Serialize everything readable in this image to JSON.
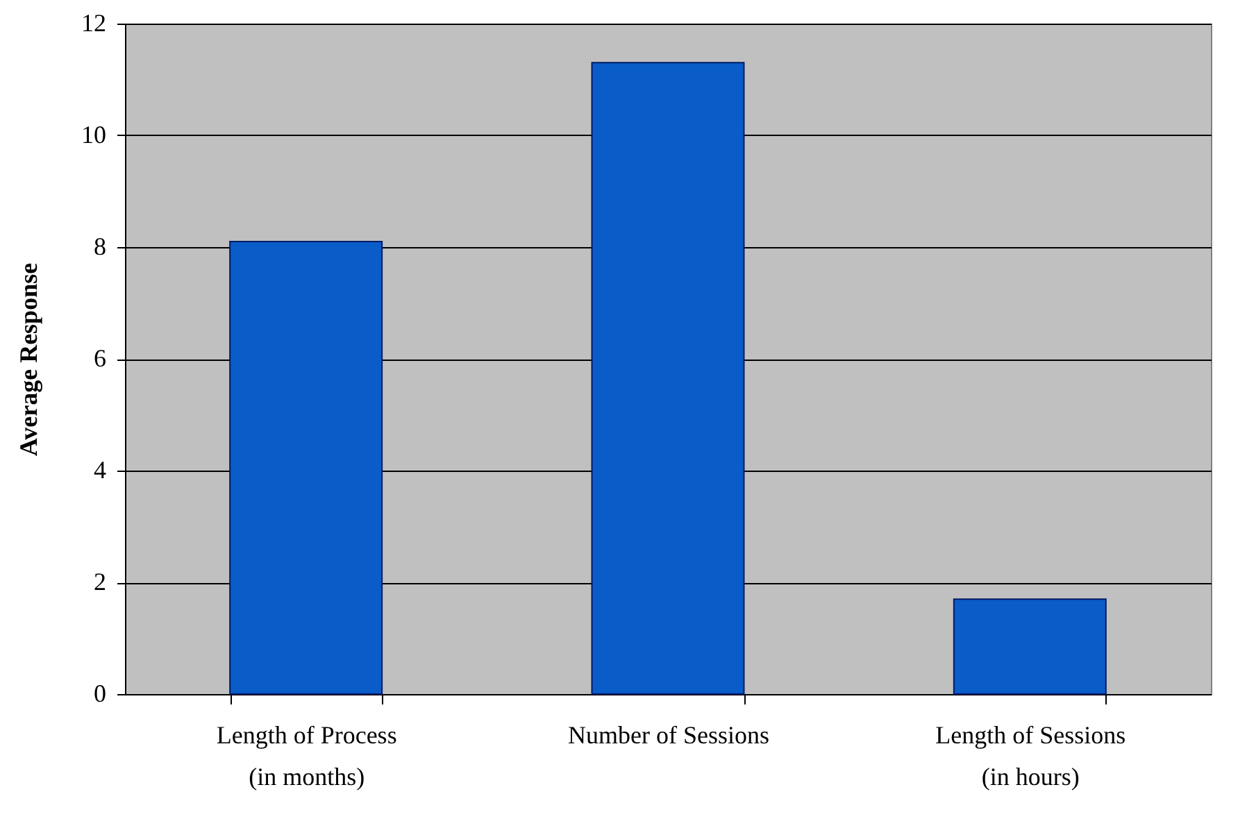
{
  "chart_data": {
    "type": "bar",
    "ylabel": "Average Response",
    "categories": [
      "Length of Process\n(in months)",
      "Number of Sessions",
      "Length of Sessions\n(in hours)"
    ],
    "values": [
      8.1,
      11.3,
      1.7
    ],
    "color": "#0a5cc8",
    "ylim": [
      0,
      12
    ],
    "yticks": [
      0,
      2,
      4,
      6,
      8,
      10,
      12
    ],
    "grid": "y"
  }
}
